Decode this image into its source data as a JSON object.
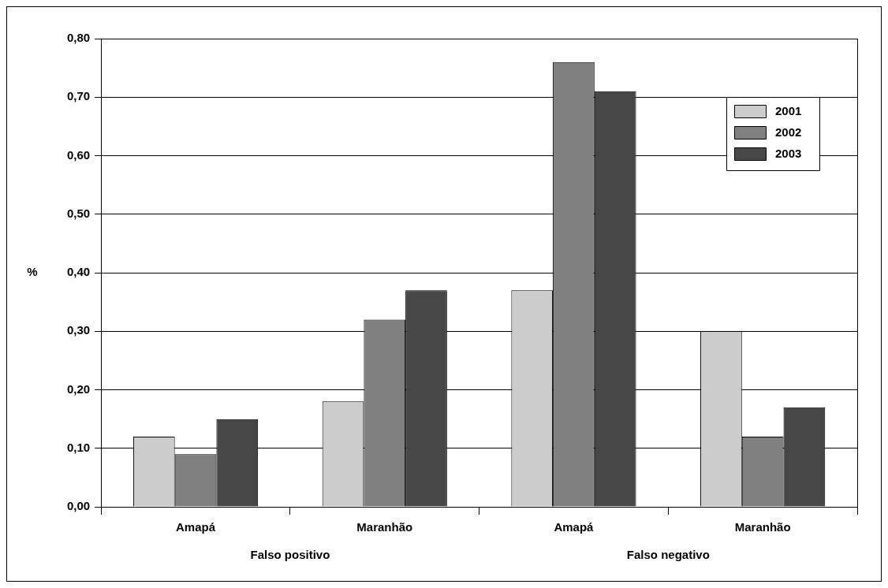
{
  "chart_data": {
    "type": "bar",
    "ylabel": "%",
    "categories": [
      "Amapá",
      "Maranhão",
      "Amapá",
      "Maranhão"
    ],
    "series": [
      {
        "name": "2001",
        "color": "#cccccc",
        "values": [
          0.12,
          0.18,
          0.37,
          0.3
        ]
      },
      {
        "name": "2002",
        "color": "#808080",
        "values": [
          0.09,
          0.32,
          0.76,
          0.12
        ]
      },
      {
        "name": "2003",
        "color": "#474747",
        "values": [
          0.15,
          0.37,
          0.71,
          0.17
        ]
      }
    ],
    "ylim": [
      0,
      0.8
    ],
    "yticks": [
      {
        "value": 0,
        "label": "0,00"
      },
      {
        "value": 0.1,
        "label": "0,10"
      },
      {
        "value": 0.2,
        "label": "0,20"
      },
      {
        "value": 0.3,
        "label": "0,30"
      },
      {
        "value": 0.4,
        "label": "0,40"
      },
      {
        "value": 0.5,
        "label": "0,50"
      },
      {
        "value": 0.6,
        "label": "0,60"
      },
      {
        "value": 0.7,
        "label": "0,70"
      },
      {
        "value": 0.8,
        "label": "0,80"
      }
    ],
    "grid": "y",
    "legend": "top right",
    "annotations": [
      "Falso positivo",
      "Falso negativo"
    ]
  }
}
